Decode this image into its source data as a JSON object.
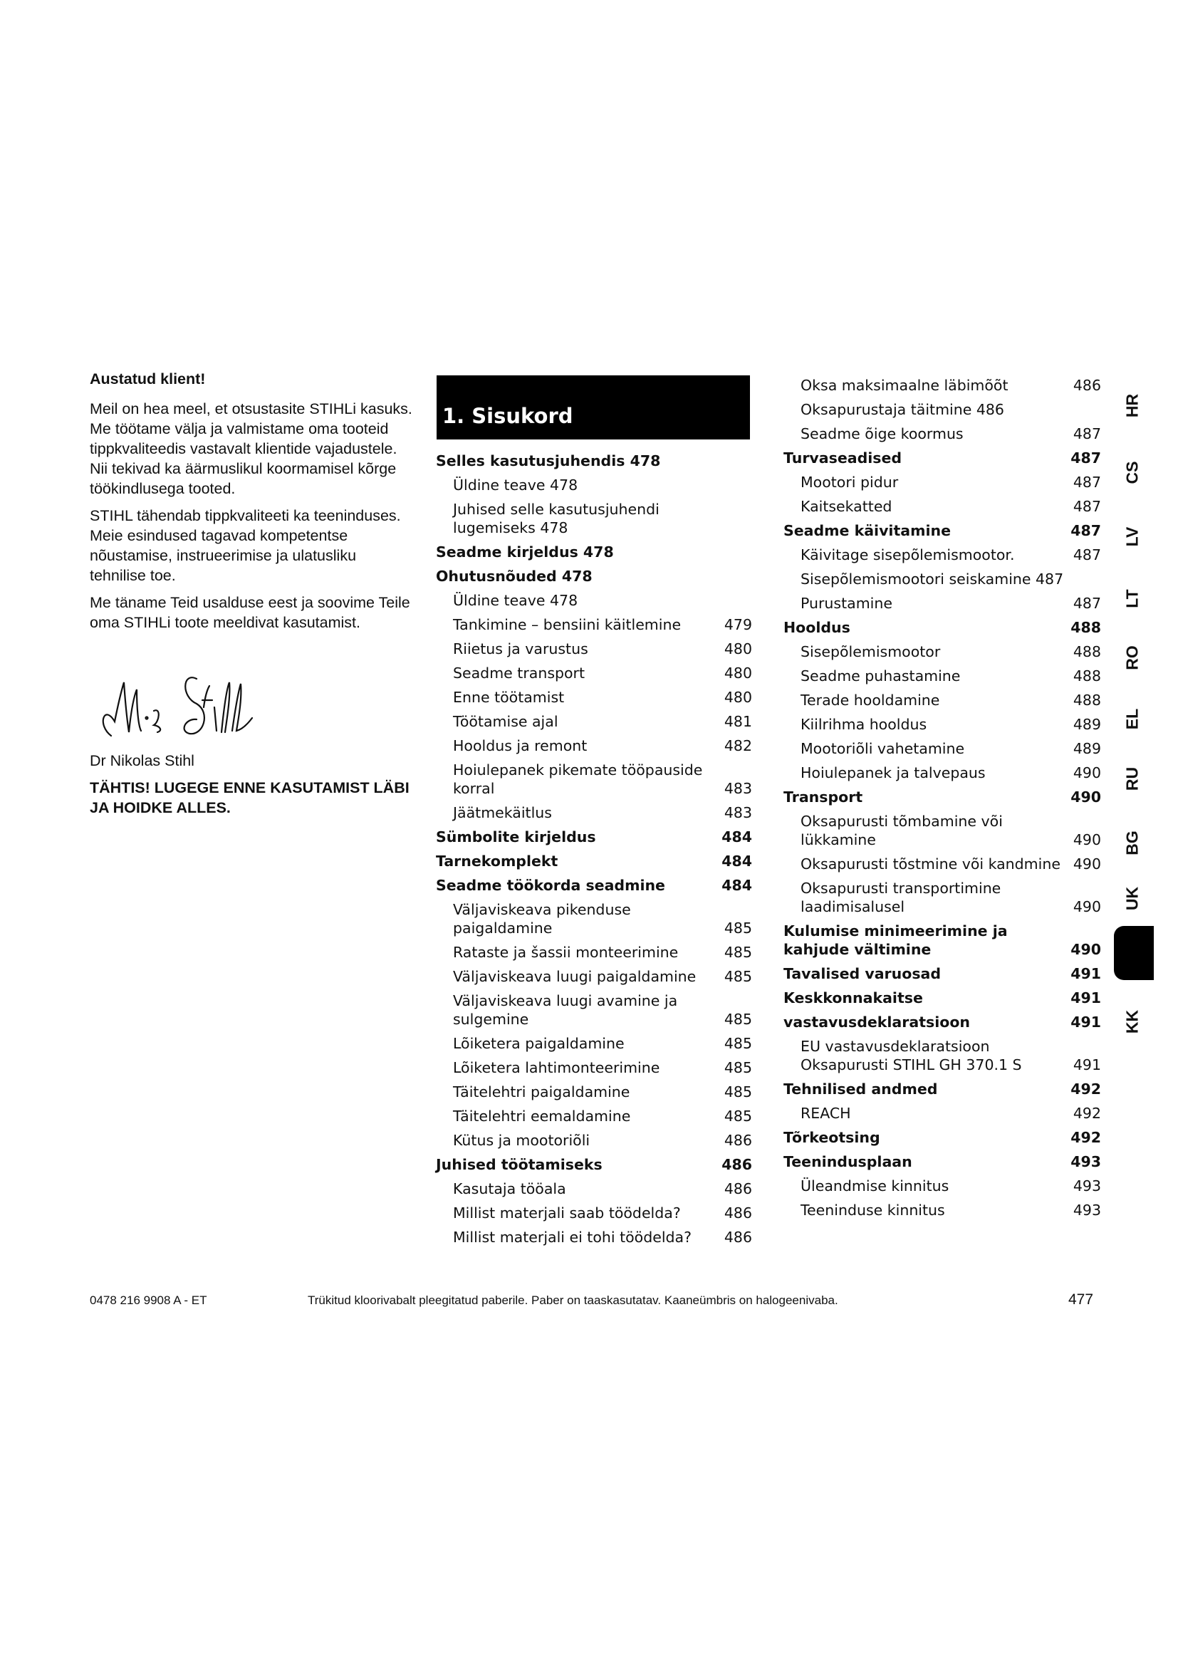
{
  "letter": {
    "greeting": "Austatud klient!",
    "paragraphs": [
      "Meil on hea meel, et otsustasite STIHLi kasuks. Me töötame välja ja valmistame oma tooteid tippkvaliteedis vastavalt klientide vajadustele. Nii tekivad ka äärmuslikul koormamisel kõrge töökindlusega tooted.",
      "STIHL tähendab tippkvaliteeti ka teeninduses. Meie esindused tagavad kompetentse nõustamise, instrueerimise ja ulatusliku tehnilise toe.",
      "Me täname Teid usalduse eest ja soovime Teile oma STIHLi toote meeldivat kasutamist."
    ],
    "signature_text": "N. Stihl",
    "signer": "Dr Nikolas Stihl",
    "notice": "TÄHTIS! LUGEGE ENNE KASUTAMIST LÄBI JA HOIDKE ALLES."
  },
  "toc": {
    "title": "1. Sisukord",
    "col1": [
      {
        "t": "Selles kasutusjuhendis 478",
        "p": "",
        "b": true
      },
      {
        "t": "Üldine teave 478",
        "p": "",
        "b": false
      },
      {
        "t": "Juhised selle kasutusjuhendi lugemiseks 478",
        "p": "",
        "b": false
      },
      {
        "t": "Seadme kirjeldus 478",
        "p": "",
        "b": true
      },
      {
        "t": "Ohutusnõuded 478",
        "p": "",
        "b": true
      },
      {
        "t": "Üldine teave 478",
        "p": "",
        "b": false
      },
      {
        "t": "Tankimine – bensiini käitlemine",
        "p": "479",
        "b": false
      },
      {
        "t": "Riietus ja varustus",
        "p": "480",
        "b": false
      },
      {
        "t": "Seadme transport",
        "p": "480",
        "b": false
      },
      {
        "t": "Enne töötamist",
        "p": "480",
        "b": false
      },
      {
        "t": "Töötamise ajal",
        "p": "481",
        "b": false
      },
      {
        "t": "Hooldus ja remont",
        "p": "482",
        "b": false
      },
      {
        "t": "Hoiulepanek pikemate tööpauside korral",
        "p": "483",
        "b": false
      },
      {
        "t": "Jäätmekäitlus",
        "p": "483",
        "b": false
      },
      {
        "t": "Sümbolite kirjeldus",
        "p": "484",
        "b": true
      },
      {
        "t": "Tarnekomplekt",
        "p": "484",
        "b": true
      },
      {
        "t": "Seadme töökorda seadmine",
        "p": "484",
        "b": true
      },
      {
        "t": "Väljaviskeava pikenduse paigaldamine",
        "p": "485",
        "b": false
      },
      {
        "t": "Rataste ja šassii monteerimine",
        "p": "485",
        "b": false
      },
      {
        "t": "Väljaviskeava luugi paigaldamine",
        "p": "485",
        "b": false
      },
      {
        "t": "Väljaviskeava luugi avamine ja sulgemine",
        "p": "485",
        "b": false
      },
      {
        "t": "Lõiketera paigaldamine",
        "p": "485",
        "b": false
      },
      {
        "t": "Lõiketera lahtimonteerimine",
        "p": "485",
        "b": false
      },
      {
        "t": "Täitelehtri paigaldamine",
        "p": "485",
        "b": false
      },
      {
        "t": "Täitelehtri eemaldamine",
        "p": "485",
        "b": false
      },
      {
        "t": "Kütus ja mootoriõli",
        "p": "486",
        "b": false
      },
      {
        "t": "Juhised töötamiseks",
        "p": "486",
        "b": true
      },
      {
        "t": "Kasutaja tööala",
        "p": "486",
        "b": false
      },
      {
        "t": "Millist materjali saab töödelda?",
        "p": "486",
        "b": false
      },
      {
        "t": "Millist materjali ei tohi töödelda?",
        "p": "486",
        "b": false
      }
    ],
    "col2": [
      {
        "t": "Oksa maksimaalne läbimõõt",
        "p": "486",
        "b": false
      },
      {
        "t": "Oksapurustaja täitmine 486",
        "p": "",
        "b": false
      },
      {
        "t": "Seadme õige koormus",
        "p": "487",
        "b": false
      },
      {
        "t": "Turvaseadised",
        "p": "487",
        "b": true
      },
      {
        "t": "Mootori pidur",
        "p": "487",
        "b": false
      },
      {
        "t": "Kaitsekatted",
        "p": "487",
        "b": false
      },
      {
        "t": "Seadme käivitamine",
        "p": "487",
        "b": true
      },
      {
        "t": "Käivitage sisepõlemismootor.",
        "p": "487",
        "b": false
      },
      {
        "t": "Sisepõlemismootori seiskamine 487",
        "p": "",
        "b": false
      },
      {
        "t": "Purustamine",
        "p": "487",
        "b": false
      },
      {
        "t": "Hooldus",
        "p": "488",
        "b": true
      },
      {
        "t": "Sisepõlemismootor",
        "p": "488",
        "b": false
      },
      {
        "t": "Seadme puhastamine",
        "p": "488",
        "b": false
      },
      {
        "t": "Terade hooldamine",
        "p": "488",
        "b": false
      },
      {
        "t": "Kiilrihma hooldus",
        "p": "489",
        "b": false
      },
      {
        "t": "Mootoriõli vahetamine",
        "p": "489",
        "b": false
      },
      {
        "t": "Hoiulepanek ja talvepaus",
        "p": "490",
        "b": false
      },
      {
        "t": "Transport",
        "p": "490",
        "b": true
      },
      {
        "t": "Oksapurusti tõmbamine või lükkamine",
        "p": "490",
        "b": false
      },
      {
        "t": "Oksapurusti tõstmine või kandmine",
        "p": "490",
        "b": false
      },
      {
        "t": "Oksapurusti transportimine laadimisalusel",
        "p": "490",
        "b": false
      },
      {
        "t": "Kulumise minimeerimine ja kahjude vältimine",
        "p": "490",
        "b": true
      },
      {
        "t": "Tavalised varuosad",
        "p": "491",
        "b": true
      },
      {
        "t": "Keskkonnakaitse",
        "p": "491",
        "b": true
      },
      {
        "t": "vastavusdeklaratsioon",
        "p": "491",
        "b": true
      },
      {
        "t": "EU vastavusdeklaratsioon Oksapurusti STIHL GH 370.1 S",
        "p": "491",
        "b": false
      },
      {
        "t": "Tehnilised andmed",
        "p": "492",
        "b": true
      },
      {
        "t": "REACH",
        "p": "492",
        "b": false
      },
      {
        "t": "Tõrkeotsing",
        "p": "492",
        "b": true
      },
      {
        "t": "Teenindusplaan",
        "p": "493",
        "b": true
      },
      {
        "t": "Üleandmise kinnitus",
        "p": "493",
        "b": false
      },
      {
        "t": "Teeninduse kinnitus",
        "p": "493",
        "b": false
      }
    ]
  },
  "language_tabs": [
    "HR",
    "CS",
    "LV",
    "LT",
    "RO",
    "EL",
    "RU",
    "BG",
    "UK",
    "KK"
  ],
  "active_tab_color": "#000000",
  "footer": {
    "code": "0478 216 9908 A - ET",
    "note": "Trükitud kloorivabalt pleegitatud paberile. Paber on taaskasutatav. Kaaneümbris on halogeenivaba.",
    "page": "477"
  }
}
